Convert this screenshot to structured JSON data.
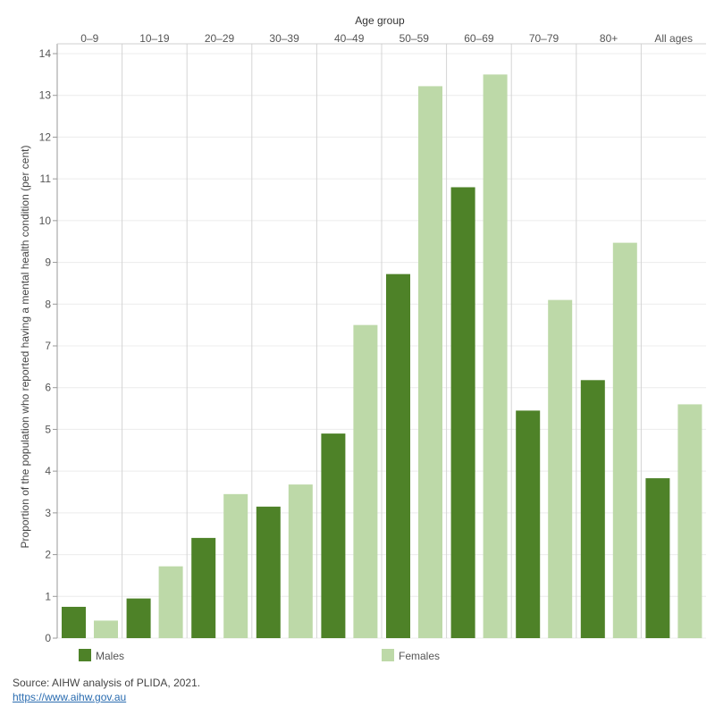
{
  "chart_data": {
    "type": "bar",
    "title": "Age group",
    "ylabel": "Proportion of the population who reported having a mental health condition (per cent)",
    "xlabel": "",
    "categories": [
      "0–9",
      "10–19",
      "20–29",
      "30–39",
      "40–49",
      "50–59",
      "60–69",
      "70–79",
      "80+",
      "All ages"
    ],
    "ylim": [
      0,
      14
    ],
    "yticks": [
      0,
      1,
      2,
      3,
      4,
      5,
      6,
      7,
      8,
      9,
      10,
      11,
      12,
      13,
      14
    ],
    "grid": true,
    "legend_position": "bottom",
    "series": [
      {
        "name": "Males",
        "color": "#4e8228",
        "values": [
          0.75,
          0.95,
          2.4,
          3.15,
          4.9,
          8.72,
          10.8,
          5.45,
          6.18,
          3.83
        ]
      },
      {
        "name": "Females",
        "color": "#bdd9a8",
        "values": [
          0.42,
          1.72,
          3.45,
          3.68,
          7.5,
          13.22,
          13.5,
          8.1,
          9.47,
          5.6
        ]
      }
    ]
  },
  "source": {
    "text": "Source: AIHW analysis of PLIDA, 2021.",
    "link": "https://www.aihw.gov.au"
  }
}
